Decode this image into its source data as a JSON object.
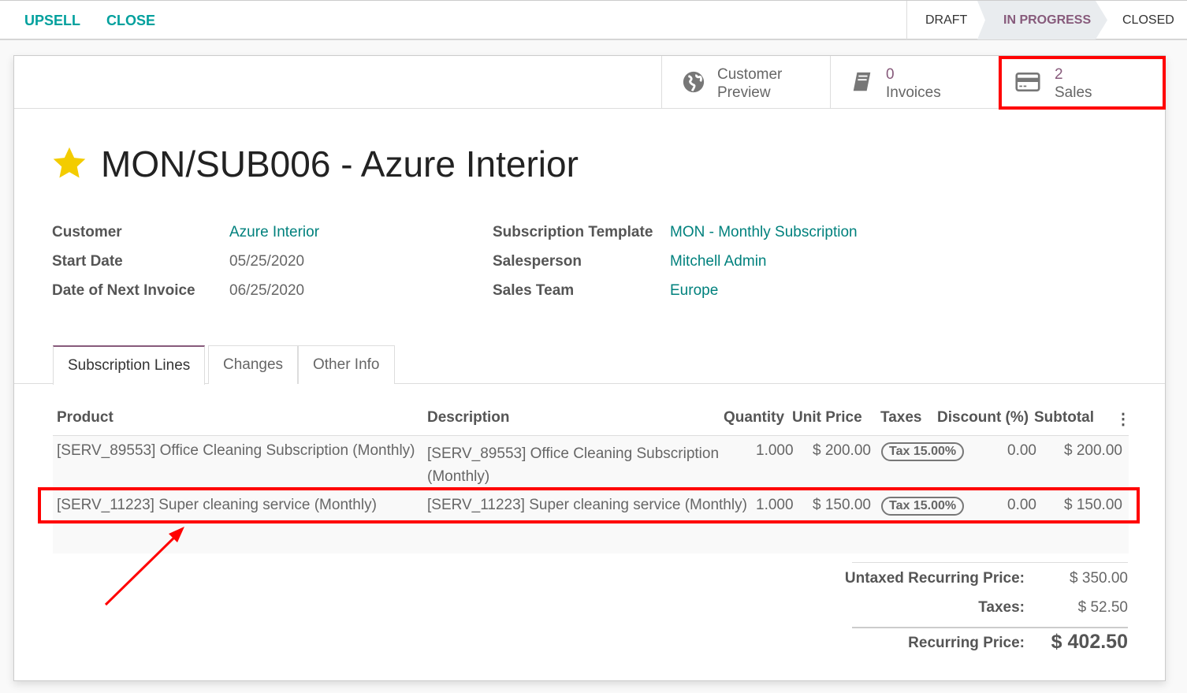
{
  "topbar": {
    "upsell": "UPSELL",
    "close": "CLOSE",
    "statuses": [
      "DRAFT",
      "IN PROGRESS",
      "CLOSED"
    ],
    "active_status": "IN PROGRESS",
    "accent": "#00a09d"
  },
  "buttons": {
    "preview_line1": "Customer",
    "preview_line2": "Preview",
    "invoices_count": "0",
    "invoices_label": "Invoices",
    "sales_count": "2",
    "sales_label": "Sales"
  },
  "title": "MON/SUB006 - Azure Interior",
  "fields": {
    "customer_label": "Customer",
    "customer": "Azure Interior",
    "start_label": "Start Date",
    "start": "05/25/2020",
    "next_label": "Date of Next Invoice",
    "next": "06/25/2020",
    "template_label": "Subscription Template",
    "template": "MON - Monthly Subscription",
    "salesperson_label": "Salesperson",
    "salesperson": "Mitchell Admin",
    "team_label": "Sales Team",
    "team": "Europe"
  },
  "tabs": [
    "Subscription Lines",
    "Changes",
    "Other Info"
  ],
  "table": {
    "headers": [
      "Product",
      "Description",
      "Quantity",
      "Unit Price",
      "Taxes",
      "Discount (%)",
      "Subtotal"
    ],
    "rows": [
      {
        "product": "[SERV_89553] Office Cleaning Subscription (Monthly)",
        "desc1": "[SERV_89553] Office Cleaning Subscription",
        "desc2": "(Monthly)",
        "qty": "1.000",
        "price": "$ 200.00",
        "tax": "Tax 15.00%",
        "discount": "0.00",
        "subtotal": "$ 200.00"
      },
      {
        "product": "[SERV_11223] Super cleaning service (Monthly)",
        "desc1": "[SERV_11223] Super cleaning service (Monthly)",
        "qty": "1.000",
        "price": "$ 150.00",
        "tax": "Tax 15.00%",
        "discount": "0.00",
        "subtotal": "$ 150.00"
      }
    ]
  },
  "totals": {
    "untaxed_label": "Untaxed Recurring Price:",
    "untaxed": "$ 350.00",
    "taxes_label": "Taxes:",
    "taxes": "$ 52.50",
    "total_label": "Recurring Price:",
    "total": "$ 402.50"
  }
}
